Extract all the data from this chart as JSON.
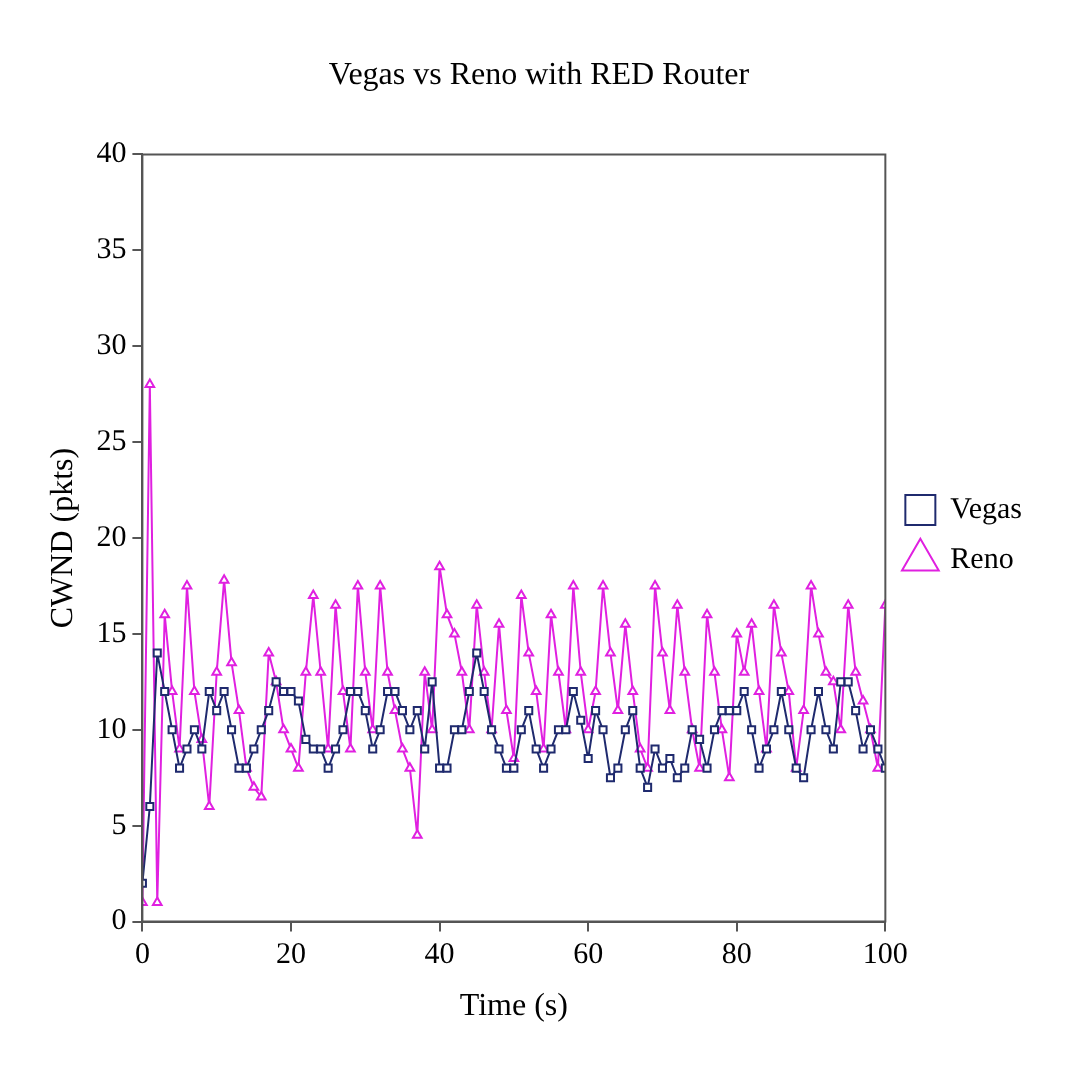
{
  "chart_data": {
    "type": "line",
    "title": "Vegas vs Reno with RED Router",
    "xlabel": "Time (s)",
    "ylabel": "CWND (pkts)",
    "x": [
      0,
      1,
      2,
      3,
      4,
      5,
      6,
      7,
      8,
      9,
      10,
      11,
      12,
      13,
      14,
      15,
      16,
      17,
      18,
      19,
      20,
      21,
      22,
      23,
      24,
      25,
      26,
      27,
      28,
      29,
      30,
      31,
      32,
      33,
      34,
      35,
      36,
      37,
      38,
      39,
      40,
      41,
      42,
      43,
      44,
      45,
      46,
      47,
      48,
      49,
      50,
      51,
      52,
      53,
      54,
      55,
      56,
      57,
      58,
      59,
      60,
      61,
      62,
      63,
      64,
      65,
      66,
      67,
      68,
      69,
      70,
      71,
      72,
      73,
      74,
      75,
      76,
      77,
      78,
      79,
      80,
      81,
      82,
      83,
      84,
      85,
      86,
      87,
      88,
      89,
      90,
      91,
      92,
      93,
      94,
      95,
      96,
      97,
      98,
      99,
      100
    ],
    "series": [
      {
        "name": "Vegas",
        "color": "#1f2a6e",
        "marker": "square",
        "values": [
          2,
          6,
          14,
          12,
          10,
          8,
          9,
          10,
          9,
          12,
          11,
          12,
          10,
          8,
          8,
          9,
          10,
          11,
          12.5,
          12,
          12,
          11.5,
          9.5,
          9,
          9,
          8,
          9,
          10,
          12,
          12,
          11,
          9,
          10,
          12,
          12,
          11,
          10,
          11,
          9,
          12.5,
          8,
          8,
          10,
          10,
          12,
          14,
          12,
          10,
          9,
          8,
          8,
          10,
          11,
          9,
          8,
          9,
          10,
          10,
          12,
          10.5,
          8.5,
          11,
          10,
          7.5,
          8,
          10,
          11,
          8,
          7,
          9,
          8,
          8.5,
          7.5,
          8,
          10,
          9.5,
          8,
          10,
          11,
          11,
          11,
          12,
          10,
          8,
          9,
          10,
          12,
          10,
          8,
          7.5,
          10,
          12,
          10,
          9,
          12.5,
          12.5,
          11,
          9,
          10,
          9,
          8
        ]
      },
      {
        "name": "Reno",
        "color": "#e020e0",
        "marker": "triangle",
        "values": [
          1,
          28,
          1,
          16,
          12,
          9,
          17.5,
          12,
          9.5,
          6,
          13,
          17.8,
          13.5,
          11,
          8,
          7,
          6.5,
          14,
          12.5,
          10,
          9,
          8,
          13,
          17,
          13,
          9,
          16.5,
          12,
          9,
          17.5,
          13,
          10,
          17.5,
          13,
          11,
          9,
          8,
          4.5,
          13,
          10,
          18.5,
          16,
          15,
          13,
          10,
          16.5,
          13,
          10,
          15.5,
          11,
          8.5,
          17,
          14,
          12,
          9,
          16,
          13,
          10,
          17.5,
          13,
          10,
          12,
          17.5,
          14,
          11,
          15.5,
          12,
          9,
          8,
          17.5,
          14,
          11,
          16.5,
          13,
          10,
          8,
          16,
          13,
          10,
          7.5,
          15,
          13,
          15.5,
          12,
          9,
          16.5,
          14,
          12,
          8,
          11,
          17.5,
          15,
          13,
          12.5,
          10,
          16.5,
          13,
          11.5,
          10,
          8,
          16.5
        ]
      }
    ],
    "xlim": [
      0,
      100
    ],
    "xticks": [
      0,
      20,
      40,
      60,
      80,
      100
    ],
    "ylim": [
      0,
      40
    ],
    "yticks": [
      0,
      5,
      10,
      15,
      20,
      25,
      30,
      35,
      40
    ],
    "grid": false,
    "legend": "right",
    "line_style": "solid"
  }
}
